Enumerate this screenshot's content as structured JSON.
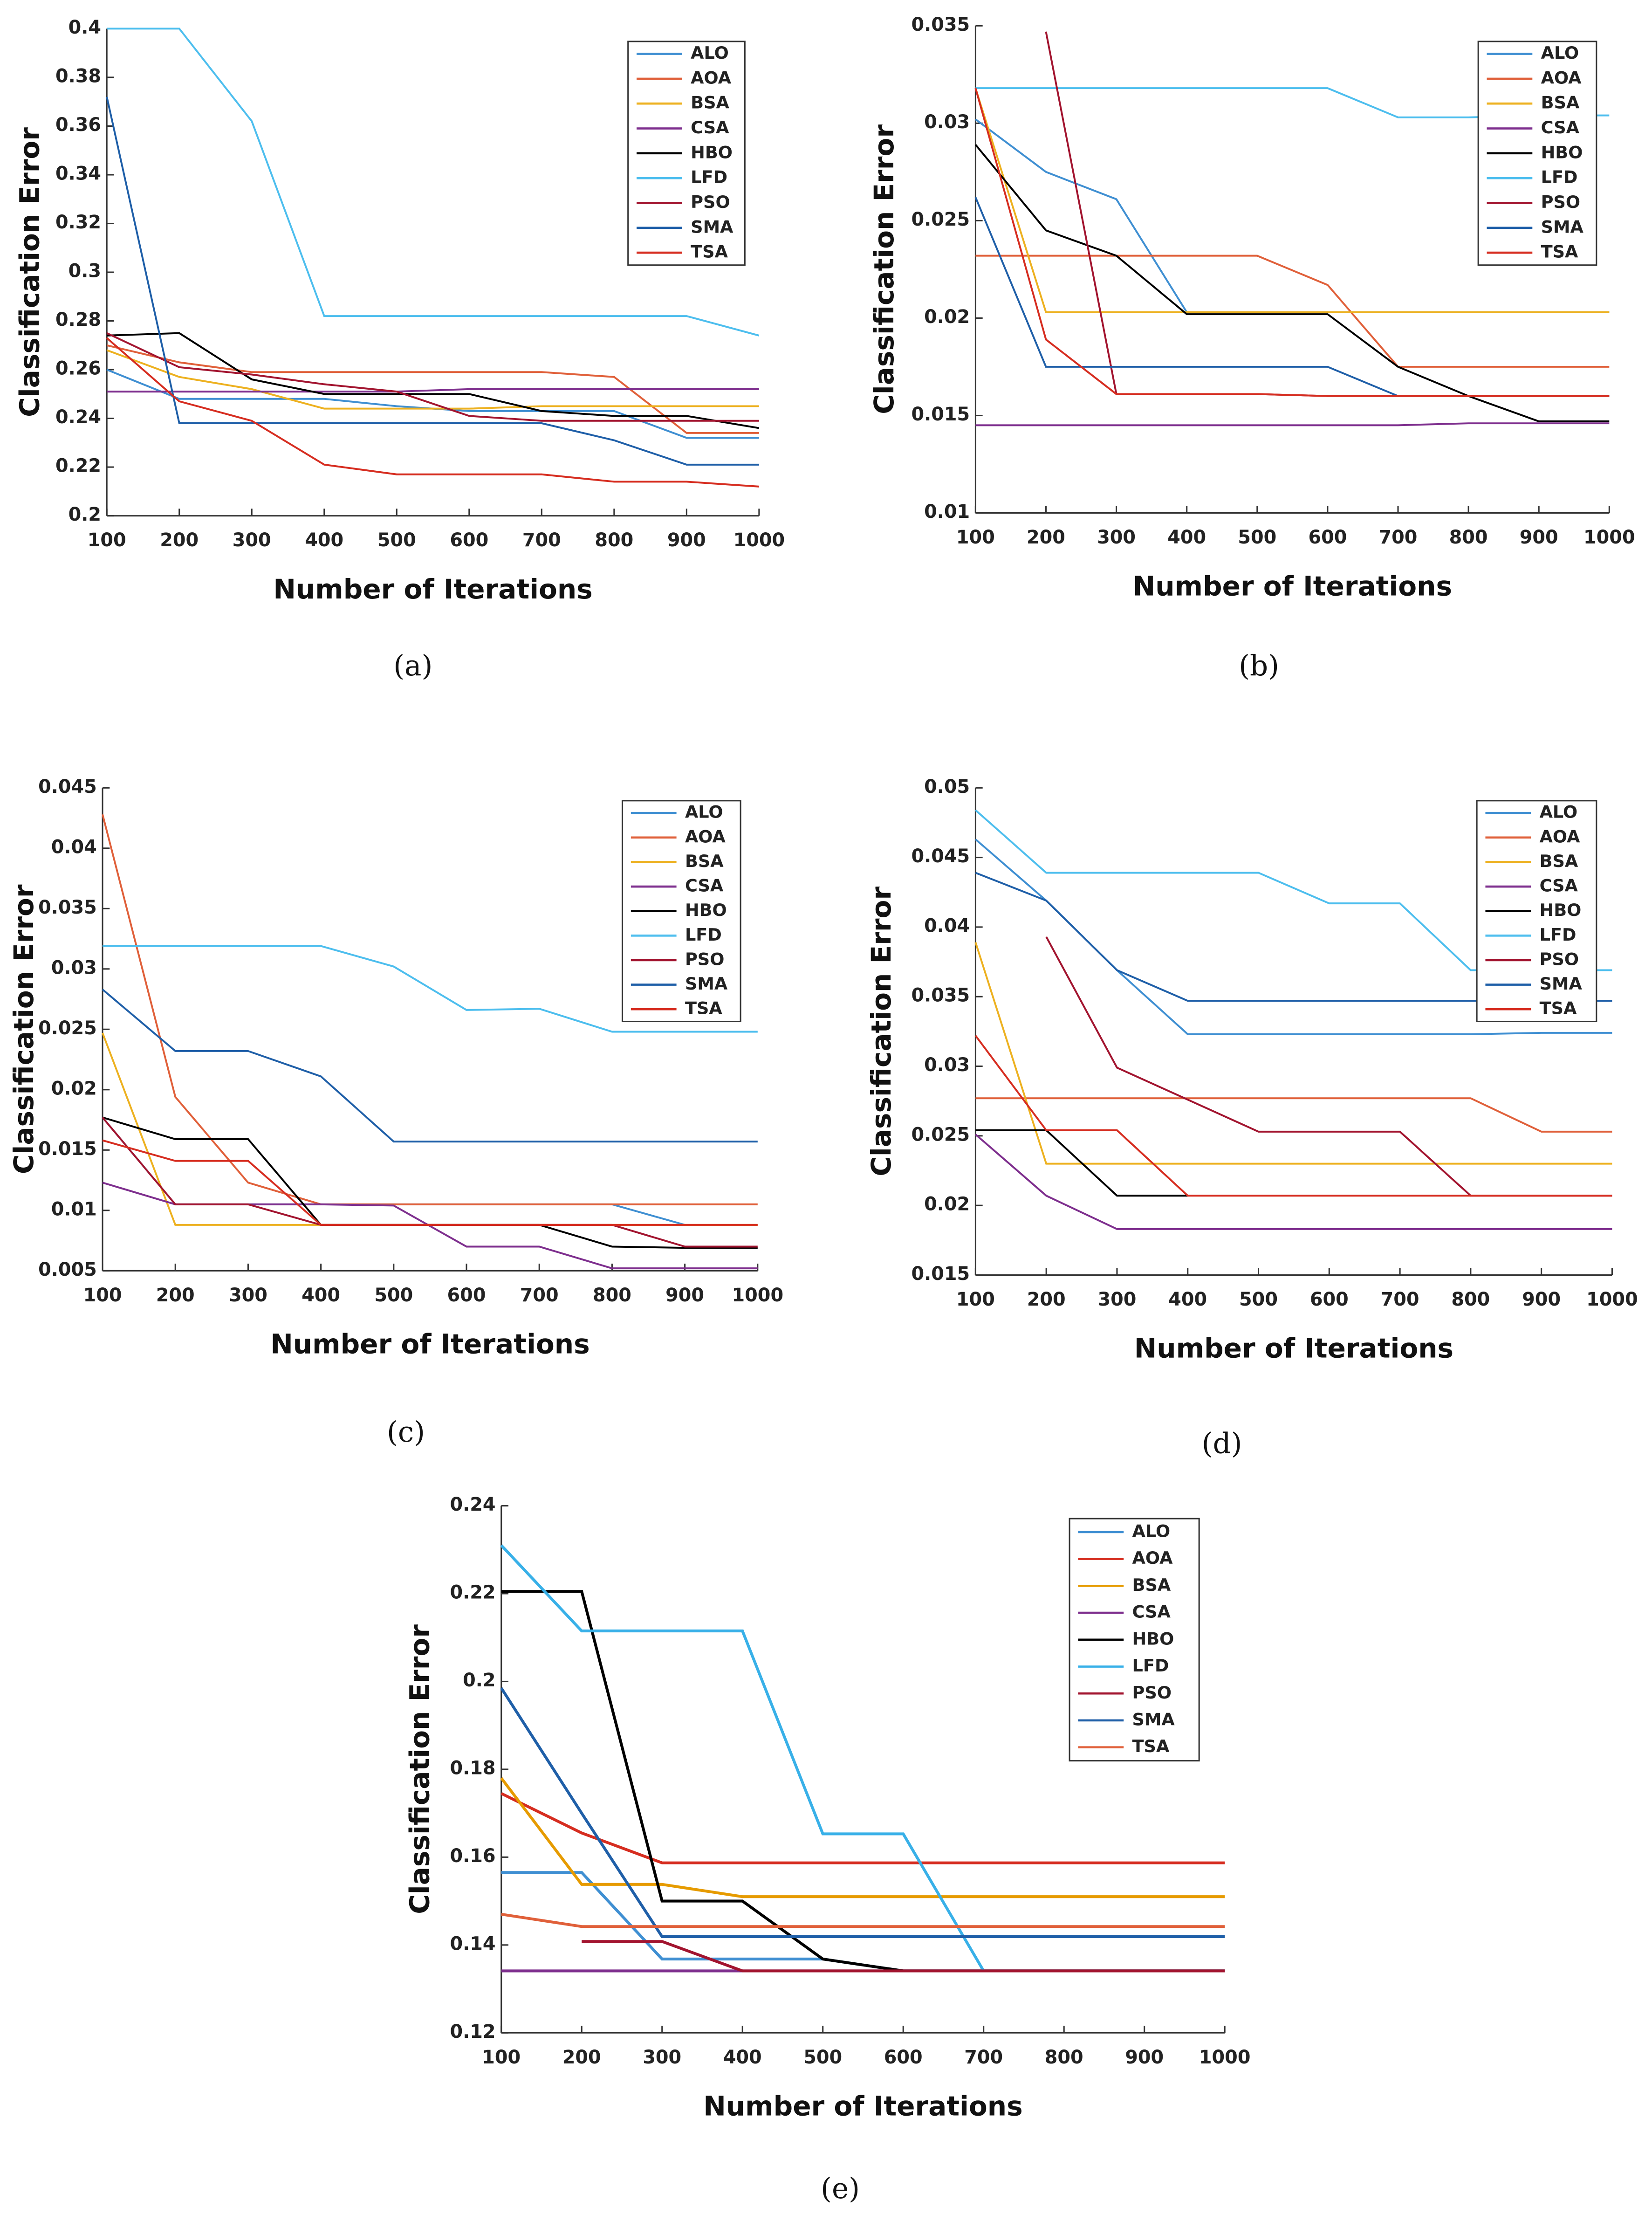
{
  "chart_data": [
    {
      "type": "line",
      "caption": "(a)",
      "x_label": "Number of Iterations",
      "y_label": "Classification Error",
      "x": [
        100,
        200,
        300,
        400,
        500,
        600,
        700,
        800,
        900,
        1000
      ],
      "xlim": [
        100,
        1000
      ],
      "xticks": [
        100,
        200,
        300,
        400,
        500,
        600,
        700,
        800,
        900,
        1000
      ],
      "ylim": [
        0.2,
        0.4
      ],
      "yticks": [
        0.2,
        0.22,
        0.24,
        0.26,
        0.28,
        0.3,
        0.32,
        0.34,
        0.36,
        0.38,
        0.4
      ],
      "series": [
        {
          "name": "ALO",
          "color": "#3f8fd2",
          "values": [
            0.26,
            0.248,
            0.248,
            0.248,
            0.245,
            0.243,
            0.243,
            0.243,
            0.232,
            0.232
          ]
        },
        {
          "name": "AOA",
          "color": "#e0603a",
          "values": [
            0.27,
            0.263,
            0.259,
            0.259,
            0.259,
            0.259,
            0.259,
            0.257,
            0.234,
            0.234
          ]
        },
        {
          "name": "BSA",
          "color": "#edb120",
          "values": [
            0.268,
            0.257,
            0.252,
            0.244,
            0.244,
            0.244,
            0.245,
            0.245,
            0.245,
            0.245
          ]
        },
        {
          "name": "CSA",
          "color": "#7e2f8e",
          "values": [
            0.251,
            0.251,
            0.251,
            0.251,
            0.251,
            0.252,
            0.252,
            0.252,
            0.252,
            0.252
          ]
        },
        {
          "name": "HBO",
          "color": "#000000",
          "values": [
            0.274,
            0.275,
            0.256,
            0.25,
            0.25,
            0.25,
            0.243,
            0.241,
            0.241,
            0.236
          ]
        },
        {
          "name": "LFD",
          "color": "#4dbeee",
          "values": [
            0.4,
            0.4,
            0.362,
            0.282,
            0.282,
            0.282,
            0.282,
            0.282,
            0.282,
            0.274
          ]
        },
        {
          "name": "PSO",
          "color": "#a2142f",
          "values": [
            0.275,
            0.261,
            0.258,
            0.254,
            0.251,
            0.241,
            0.239,
            0.239,
            0.239,
            0.239
          ]
        },
        {
          "name": "SMA",
          "color": "#1f5fa8",
          "values": [
            0.372,
            0.238,
            0.238,
            0.238,
            0.238,
            0.238,
            0.238,
            0.231,
            0.221,
            0.221
          ]
        },
        {
          "name": "TSA",
          "color": "#d62d20",
          "values": [
            0.273,
            0.247,
            0.239,
            0.221,
            0.217,
            0.217,
            0.217,
            0.214,
            0.214,
            0.212
          ]
        }
      ]
    },
    {
      "type": "line",
      "caption": "(b)",
      "x_label": "Number of Iterations",
      "y_label": "Classification Error",
      "x": [
        100,
        200,
        300,
        400,
        500,
        600,
        700,
        800,
        900,
        1000
      ],
      "xlim": [
        100,
        1000
      ],
      "xticks": [
        100,
        200,
        300,
        400,
        500,
        600,
        700,
        800,
        900,
        1000
      ],
      "ylim": [
        0.01,
        0.035
      ],
      "yticks": [
        0.01,
        0.015,
        0.02,
        0.025,
        0.03,
        0.035
      ],
      "series": [
        {
          "name": "ALO",
          "color": "#3f8fd2",
          "values": [
            0.0302,
            0.0275,
            0.0261,
            0.0203,
            0.0203,
            0.0203,
            0.0203,
            0.0203,
            0.0203,
            0.0203
          ]
        },
        {
          "name": "AOA",
          "color": "#e0603a",
          "values": [
            0.0232,
            0.0232,
            0.0232,
            0.0232,
            0.0232,
            0.0217,
            0.0175,
            0.0175,
            0.0175,
            0.0175
          ]
        },
        {
          "name": "BSA",
          "color": "#edb120",
          "values": [
            0.0318,
            0.0203,
            0.0203,
            0.0203,
            0.0203,
            0.0203,
            0.0203,
            0.0203,
            0.0203,
            0.0203
          ]
        },
        {
          "name": "CSA",
          "color": "#7e2f8e",
          "values": [
            0.0145,
            0.0145,
            0.0145,
            0.0145,
            0.0145,
            0.0145,
            0.0145,
            0.0146,
            0.0146,
            0.0146
          ]
        },
        {
          "name": "HBO",
          "color": "#000000",
          "values": [
            0.0289,
            0.0245,
            0.0232,
            0.0202,
            0.0202,
            0.0202,
            0.0175,
            0.016,
            0.0147,
            0.0147
          ]
        },
        {
          "name": "LFD",
          "color": "#4dbeee",
          "values": [
            0.0318,
            0.0318,
            0.0318,
            0.0318,
            0.0318,
            0.0318,
            0.0303,
            0.0303,
            0.0304,
            0.0304
          ]
        },
        {
          "name": "PSO",
          "color": "#a2142f",
          "values": [
            null,
            0.0347,
            0.0161,
            0.0161,
            0.0161,
            0.016,
            0.016,
            0.016,
            0.016,
            0.016
          ]
        },
        {
          "name": "SMA",
          "color": "#1f5fa8",
          "values": [
            0.0262,
            0.0175,
            0.0175,
            0.0175,
            0.0175,
            0.0175,
            0.016,
            0.016,
            0.016,
            0.016
          ]
        },
        {
          "name": "TSA",
          "color": "#d62d20",
          "values": [
            0.0318,
            0.0189,
            0.0161,
            0.0161,
            0.0161,
            0.016,
            0.016,
            0.016,
            0.016,
            0.016
          ]
        }
      ]
    },
    {
      "type": "line",
      "caption": "(c)",
      "x_label": "Number of Iterations",
      "y_label": "Classification Error",
      "x": [
        100,
        200,
        300,
        400,
        500,
        600,
        700,
        800,
        900,
        1000
      ],
      "xlim": [
        100,
        1000
      ],
      "xticks": [
        100,
        200,
        300,
        400,
        500,
        600,
        700,
        800,
        900,
        1000
      ],
      "ylim": [
        0.005,
        0.045
      ],
      "yticks": [
        0.005,
        0.01,
        0.015,
        0.02,
        0.025,
        0.03,
        0.035,
        0.04,
        0.045
      ],
      "series": [
        {
          "name": "ALO",
          "color": "#3f8fd2",
          "values": [
            0.0177,
            0.0105,
            0.0105,
            0.0105,
            0.0105,
            0.0105,
            0.0105,
            0.0105,
            0.0088,
            null
          ]
        },
        {
          "name": "AOA",
          "color": "#e0603a",
          "values": [
            0.0428,
            0.0194,
            0.0123,
            0.0105,
            0.0105,
            0.0105,
            0.0105,
            0.0105,
            0.0105,
            0.0105
          ]
        },
        {
          "name": "BSA",
          "color": "#edb120",
          "values": [
            0.0247,
            0.0088,
            0.0088,
            0.0088,
            0.0088,
            0.0088,
            0.0088,
            0.0088,
            0.0088,
            0.0088
          ]
        },
        {
          "name": "CSA",
          "color": "#7e2f8e",
          "values": [
            0.0123,
            0.0105,
            0.0105,
            0.0105,
            0.0104,
            0.007,
            0.007,
            0.0052,
            0.0052,
            0.0052
          ]
        },
        {
          "name": "HBO",
          "color": "#000000",
          "values": [
            0.0177,
            0.0159,
            0.0159,
            0.0088,
            0.0088,
            0.0088,
            0.0088,
            0.007,
            0.0069,
            0.0069
          ]
        },
        {
          "name": "LFD",
          "color": "#4dbeee",
          "values": [
            0.0319,
            0.0319,
            0.0319,
            0.0319,
            0.0302,
            0.0266,
            0.0267,
            0.0248,
            0.0248,
            0.0248
          ]
        },
        {
          "name": "PSO",
          "color": "#a2142f",
          "values": [
            0.0177,
            0.0105,
            0.0105,
            0.0088,
            0.0088,
            0.0088,
            0.0088,
            0.0088,
            0.007,
            0.007
          ]
        },
        {
          "name": "SMA",
          "color": "#1f5fa8",
          "values": [
            0.0283,
            0.0232,
            0.0232,
            0.0211,
            0.0157,
            0.0157,
            0.0157,
            0.0157,
            0.0157,
            0.0157
          ]
        },
        {
          "name": "TSA",
          "color": "#d62d20",
          "values": [
            0.0158,
            0.0141,
            0.0141,
            0.0088,
            0.0088,
            0.0088,
            0.0088,
            0.0088,
            0.0088,
            0.0088
          ]
        }
      ]
    },
    {
      "type": "line",
      "caption": "(d)",
      "x_label": "Number of Iterations",
      "y_label": "Classification Error",
      "x": [
        100,
        200,
        300,
        400,
        500,
        600,
        700,
        800,
        900,
        1000
      ],
      "xlim": [
        100,
        1000
      ],
      "xticks": [
        100,
        200,
        300,
        400,
        500,
        600,
        700,
        800,
        900,
        1000
      ],
      "ylim": [
        0.015,
        0.05
      ],
      "yticks": [
        0.015,
        0.02,
        0.025,
        0.03,
        0.035,
        0.04,
        0.045,
        0.05
      ],
      "series": [
        {
          "name": "ALO",
          "color": "#3f8fd2",
          "values": [
            0.0463,
            0.0419,
            0.0369,
            0.0323,
            0.0323,
            0.0323,
            0.0323,
            0.0323,
            0.0324,
            0.0324
          ]
        },
        {
          "name": "AOA",
          "color": "#e0603a",
          "values": [
            0.0277,
            0.0277,
            0.0277,
            0.0277,
            0.0277,
            0.0277,
            0.0277,
            0.0277,
            0.0253,
            0.0253
          ]
        },
        {
          "name": "BSA",
          "color": "#edb120",
          "values": [
            0.0389,
            0.023,
            0.023,
            0.023,
            0.023,
            0.023,
            0.023,
            0.023,
            0.023,
            0.023
          ]
        },
        {
          "name": "CSA",
          "color": "#7e2f8e",
          "values": [
            0.0251,
            0.0207,
            0.0183,
            0.0183,
            0.0183,
            0.0183,
            0.0183,
            0.0183,
            0.0183,
            0.0183
          ]
        },
        {
          "name": "HBO",
          "color": "#000000",
          "values": [
            0.0254,
            0.0254,
            0.0207,
            0.0207,
            null,
            null,
            null,
            null,
            null,
            null
          ]
        },
        {
          "name": "LFD",
          "color": "#4dbeee",
          "values": [
            0.0484,
            0.0439,
            0.0439,
            0.0439,
            0.0439,
            0.0417,
            0.0417,
            0.0369,
            0.0369,
            0.0369
          ]
        },
        {
          "name": "PSO",
          "color": "#a2142f",
          "values": [
            null,
            0.0393,
            0.0299,
            0.0276,
            0.0253,
            0.0253,
            0.0253,
            0.0207,
            0.0207,
            0.0207
          ]
        },
        {
          "name": "SMA",
          "color": "#1f5fa8",
          "values": [
            0.0439,
            0.0419,
            0.0369,
            0.0347,
            0.0347,
            0.0347,
            0.0347,
            0.0347,
            0.0347,
            0.0347
          ]
        },
        {
          "name": "TSA",
          "color": "#d62d20",
          "values": [
            0.0322,
            0.0254,
            0.0254,
            0.0207,
            0.0207,
            0.0207,
            0.0207,
            0.0207,
            0.0207,
            0.0207
          ]
        }
      ]
    },
    {
      "type": "line",
      "caption": "(e)",
      "x_label": "Number of Iterations",
      "y_label": "Classification Error",
      "x": [
        100,
        200,
        300,
        400,
        500,
        600,
        700,
        800,
        900,
        1000
      ],
      "xlim": [
        100,
        1000
      ],
      "xticks": [
        100,
        200,
        300,
        400,
        500,
        600,
        700,
        800,
        900,
        1000
      ],
      "ylim": [
        0.12,
        0.24
      ],
      "yticks": [
        0.12,
        0.14,
        0.16,
        0.18,
        0.2,
        0.22,
        0.24
      ],
      "series": [
        {
          "name": "ALO",
          "color": "#3f8fd2",
          "values": [
            0.1565,
            0.1565,
            0.1368,
            0.1368,
            0.1368,
            0.1341,
            0.1341,
            0.1341,
            0.1341,
            0.1341
          ]
        },
        {
          "name": "AOA",
          "color": "#d62d20",
          "values": [
            0.1745,
            0.1655,
            0.1587,
            0.1587,
            0.1587,
            0.1587,
            0.1587,
            0.1587,
            0.1587,
            0.1587
          ]
        },
        {
          "name": "BSA",
          "color": "#e69b00",
          "values": [
            0.178,
            0.1538,
            0.1538,
            0.151,
            0.151,
            0.151,
            0.151,
            0.151,
            0.151,
            0.151
          ]
        },
        {
          "name": "CSA",
          "color": "#7e2f8e",
          "values": [
            0.1341,
            0.1341,
            0.1341,
            0.1341,
            0.1341,
            0.1341,
            0.1341,
            0.1341,
            0.1341,
            0.1341
          ]
        },
        {
          "name": "HBO",
          "color": "#000000",
          "values": [
            0.2205,
            0.2205,
            0.15,
            0.15,
            0.1368,
            0.1341,
            0.1341,
            0.1341,
            0.1341,
            0.1341
          ]
        },
        {
          "name": "LFD",
          "color": "#38b0e8",
          "values": [
            0.231,
            0.2115,
            0.2115,
            0.2115,
            0.1653,
            0.1653,
            0.1341,
            null,
            null,
            null
          ]
        },
        {
          "name": "PSO",
          "color": "#a2142f",
          "values": [
            null,
            0.1408,
            0.1408,
            0.1341,
            0.1341,
            0.1341,
            0.1341,
            0.1341,
            0.1341,
            0.1341
          ]
        },
        {
          "name": "SMA",
          "color": "#1f5fa8",
          "values": [
            0.1985,
            0.17,
            0.1419,
            0.1419,
            0.1419,
            0.1419,
            0.1419,
            0.1419,
            0.1419,
            0.1419
          ]
        },
        {
          "name": "TSA",
          "color": "#e0603a",
          "values": [
            0.147,
            0.1442,
            0.1442,
            0.1442,
            0.1442,
            0.1442,
            0.1442,
            0.1442,
            0.1442,
            0.1442
          ]
        }
      ]
    }
  ]
}
